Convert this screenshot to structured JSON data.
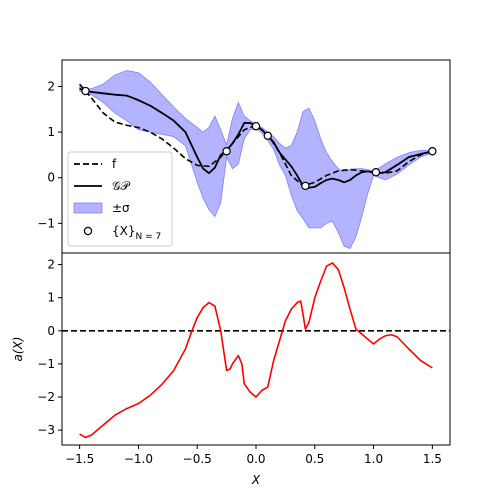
{
  "chart_data": [
    {
      "type": "line",
      "panel": "top",
      "xlim": [
        -1.65,
        1.65
      ],
      "ylim": [
        -1.65,
        2.58
      ],
      "yticks": [
        -1,
        0,
        1,
        2
      ],
      "ytick_labels": [
        "−1",
        "0",
        "1",
        "2"
      ],
      "grid": false,
      "legend_position": "lower-left",
      "legend": [
        {
          "label": "f",
          "style": "dashed-black"
        },
        {
          "label": "𝒢𝒫",
          "style": "solid-black"
        },
        {
          "label": "±σ",
          "style": "blue-band"
        },
        {
          "label": "{X}",
          "sub": "N = 7",
          "style": "open-circle"
        }
      ],
      "colors": {
        "band": "#8080ff",
        "f": "#000000",
        "gp": "#000000"
      },
      "series": [
        {
          "name": "f",
          "x": [
            -1.5,
            -1.4,
            -1.3,
            -1.2,
            -1.1,
            -1.0,
            -0.9,
            -0.8,
            -0.7,
            -0.6,
            -0.5,
            -0.4,
            -0.3,
            -0.2,
            -0.1,
            0.0,
            0.1,
            0.2,
            0.3,
            0.4,
            0.5,
            0.6,
            0.7,
            0.8,
            0.9,
            1.0,
            1.1,
            1.2,
            1.3,
            1.4,
            1.5
          ],
          "y": [
            2.05,
            1.75,
            1.42,
            1.22,
            1.15,
            1.1,
            1.0,
            0.85,
            0.65,
            0.42,
            0.27,
            0.25,
            0.45,
            0.75,
            1.05,
            1.15,
            0.95,
            0.55,
            0.05,
            -0.18,
            -0.1,
            0.05,
            0.15,
            0.18,
            0.15,
            0.12,
            0.1,
            0.15,
            0.35,
            0.5,
            0.58
          ]
        },
        {
          "name": "𝒢𝒫",
          "x": [
            -1.5,
            -1.45,
            -1.4,
            -1.3,
            -1.2,
            -1.1,
            -1.0,
            -0.9,
            -0.8,
            -0.7,
            -0.6,
            -0.5,
            -0.45,
            -0.4,
            -0.35,
            -0.3,
            -0.25,
            -0.2,
            -0.15,
            -0.1,
            -0.05,
            0.0,
            0.05,
            0.1,
            0.15,
            0.2,
            0.25,
            0.3,
            0.35,
            0.4,
            0.45,
            0.5,
            0.55,
            0.6,
            0.65,
            0.7,
            0.75,
            0.8,
            0.85,
            0.9,
            0.95,
            1.0,
            1.05,
            1.1,
            1.2,
            1.3,
            1.4,
            1.5
          ],
          "y": [
            1.95,
            1.9,
            1.88,
            1.85,
            1.82,
            1.8,
            1.7,
            1.58,
            1.42,
            1.25,
            1.0,
            0.45,
            0.2,
            0.1,
            0.22,
            0.5,
            0.6,
            0.75,
            0.95,
            1.2,
            1.2,
            1.13,
            1.05,
            0.92,
            0.78,
            0.55,
            0.4,
            0.25,
            0.05,
            -0.18,
            -0.22,
            -0.2,
            -0.12,
            -0.05,
            -0.02,
            -0.05,
            -0.1,
            -0.05,
            0.05,
            0.12,
            0.14,
            0.12,
            0.1,
            0.12,
            0.28,
            0.45,
            0.52,
            0.58
          ]
        },
        {
          "name": "±σ",
          "x": [
            -1.5,
            -1.45,
            -1.4,
            -1.3,
            -1.2,
            -1.1,
            -1.0,
            -0.9,
            -0.8,
            -0.7,
            -0.6,
            -0.5,
            -0.45,
            -0.4,
            -0.35,
            -0.3,
            -0.25,
            -0.2,
            -0.15,
            -0.1,
            -0.05,
            0.0,
            0.05,
            0.1,
            0.15,
            0.2,
            0.25,
            0.3,
            0.35,
            0.4,
            0.45,
            0.5,
            0.55,
            0.6,
            0.65,
            0.7,
            0.75,
            0.8,
            0.85,
            0.9,
            0.95,
            1.0,
            1.05,
            1.1,
            1.2,
            1.3,
            1.4,
            1.5
          ],
          "upper": [
            2.0,
            1.95,
            1.95,
            2.05,
            2.25,
            2.35,
            2.3,
            2.1,
            1.82,
            1.55,
            1.3,
            1.1,
            1.0,
            1.1,
            1.35,
            1.05,
            0.72,
            1.3,
            1.65,
            1.35,
            1.25,
            1.18,
            1.1,
            1.0,
            0.9,
            0.75,
            0.65,
            0.7,
            1.0,
            1.45,
            1.52,
            1.25,
            0.85,
            0.55,
            0.35,
            0.2,
            0.12,
            0.18,
            0.2,
            0.2,
            0.18,
            0.15,
            0.22,
            0.3,
            0.45,
            0.55,
            0.6,
            0.6
          ],
          "lower": [
            1.9,
            1.85,
            1.82,
            1.65,
            1.42,
            1.25,
            1.05,
            1.0,
            0.95,
            0.9,
            0.7,
            -0.1,
            -0.45,
            -0.7,
            -0.85,
            -0.55,
            0.45,
            0.2,
            0.3,
            0.85,
            1.05,
            1.08,
            0.98,
            0.82,
            0.62,
            0.28,
            0.05,
            -0.38,
            -0.72,
            -0.9,
            -1.1,
            -1.1,
            -1.1,
            -1.0,
            -0.95,
            -1.2,
            -1.5,
            -1.55,
            -1.3,
            -0.85,
            -0.35,
            0.05,
            0.0,
            -0.05,
            0.08,
            0.28,
            0.45,
            0.55
          ]
        },
        {
          "name": "{X}",
          "x": [
            -1.45,
            -0.25,
            0.0,
            0.1,
            0.42,
            1.02,
            1.5
          ],
          "y": [
            1.9,
            0.58,
            1.13,
            0.92,
            -0.18,
            0.12,
            0.58
          ]
        }
      ]
    },
    {
      "type": "line",
      "panel": "bottom",
      "xlim": [
        -1.65,
        1.65
      ],
      "ylim": [
        -3.45,
        2.35
      ],
      "xticks": [
        -1.5,
        -1.0,
        -0.5,
        0.0,
        0.5,
        1.0,
        1.5
      ],
      "xtick_labels": [
        "−1.5",
        "−1.0",
        "−0.5",
        "0.0",
        "0.5",
        "1.0",
        "1.5"
      ],
      "yticks": [
        -3,
        -2,
        -1,
        0,
        1,
        2
      ],
      "ytick_labels": [
        "−3",
        "−2",
        "−1",
        "0",
        "1",
        "2"
      ],
      "xlabel": "X",
      "ylabel": "a(X)",
      "grid": false,
      "colors": {
        "acq": "#ff0000",
        "zero": "#000000"
      },
      "zero_line": 0,
      "series": [
        {
          "name": "a(X)",
          "x": [
            -1.5,
            -1.45,
            -1.4,
            -1.3,
            -1.2,
            -1.1,
            -1.0,
            -0.9,
            -0.8,
            -0.7,
            -0.6,
            -0.55,
            -0.5,
            -0.45,
            -0.4,
            -0.35,
            -0.3,
            -0.25,
            -0.22,
            -0.2,
            -0.15,
            -0.12,
            -0.1,
            -0.05,
            0.0,
            0.05,
            0.1,
            0.15,
            0.2,
            0.25,
            0.3,
            0.35,
            0.38,
            0.4,
            0.42,
            0.45,
            0.5,
            0.55,
            0.6,
            0.65,
            0.7,
            0.75,
            0.8,
            0.85,
            0.9,
            0.95,
            1.0,
            1.05,
            1.1,
            1.15,
            1.2,
            1.3,
            1.4,
            1.5
          ],
          "y": [
            -3.12,
            -3.22,
            -3.15,
            -2.85,
            -2.55,
            -2.35,
            -2.2,
            -1.95,
            -1.62,
            -1.2,
            -0.55,
            -0.05,
            0.4,
            0.7,
            0.85,
            0.75,
            0.0,
            -1.2,
            -1.15,
            -1.0,
            -0.75,
            -1.0,
            -1.6,
            -1.85,
            -2.0,
            -1.8,
            -1.7,
            -0.9,
            -0.3,
            0.3,
            0.65,
            0.85,
            0.9,
            0.5,
            0.05,
            0.25,
            1.0,
            1.5,
            1.95,
            2.05,
            1.85,
            1.3,
            0.65,
            0.05,
            -0.1,
            -0.25,
            -0.4,
            -0.25,
            -0.15,
            -0.12,
            -0.18,
            -0.55,
            -0.9,
            -1.12
          ]
        }
      ]
    }
  ]
}
